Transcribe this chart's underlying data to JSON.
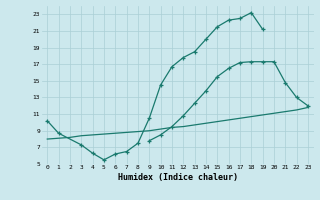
{
  "bg_color": "#cce8ed",
  "grid_color": "#aacfd6",
  "line_color": "#1a7a6e",
  "xlabel": "Humidex (Indice chaleur)",
  "xlim": [
    -0.5,
    23.5
  ],
  "ylim": [
    5,
    24
  ],
  "yticks": [
    5,
    7,
    9,
    11,
    13,
    15,
    17,
    19,
    21,
    23
  ],
  "xticks": [
    0,
    1,
    2,
    3,
    4,
    5,
    6,
    7,
    8,
    9,
    10,
    11,
    12,
    13,
    14,
    15,
    16,
    17,
    18,
    19,
    20,
    21,
    22,
    23
  ],
  "curve1_x": [
    0,
    1,
    3,
    4,
    5,
    6,
    7,
    8,
    9,
    10,
    11,
    12,
    13,
    14,
    15,
    16,
    17,
    18,
    19
  ],
  "curve1_y": [
    10.2,
    8.7,
    7.3,
    6.3,
    5.5,
    6.2,
    6.5,
    7.5,
    10.5,
    14.5,
    16.7,
    17.8,
    18.5,
    20.0,
    21.5,
    22.3,
    22.5,
    23.2,
    21.2
  ],
  "curve2_x": [
    9,
    10,
    11,
    12,
    13,
    14,
    15,
    16,
    17,
    18,
    19,
    20,
    21,
    22,
    23
  ],
  "curve2_y": [
    7.8,
    8.5,
    9.5,
    10.8,
    12.3,
    13.8,
    15.5,
    16.5,
    17.2,
    17.3,
    17.3,
    17.3,
    14.8,
    13.0,
    12.0
  ],
  "curve3_x": [
    0,
    1,
    2,
    3,
    4,
    5,
    6,
    7,
    8,
    9,
    10,
    11,
    12,
    13,
    14,
    15,
    16,
    17,
    18,
    19,
    20,
    21,
    22,
    23
  ],
  "curve3_y": [
    8.0,
    8.1,
    8.2,
    8.4,
    8.5,
    8.6,
    8.7,
    8.8,
    8.9,
    9.0,
    9.2,
    9.4,
    9.5,
    9.7,
    9.9,
    10.1,
    10.3,
    10.5,
    10.7,
    10.9,
    11.1,
    11.3,
    11.5,
    11.8
  ]
}
